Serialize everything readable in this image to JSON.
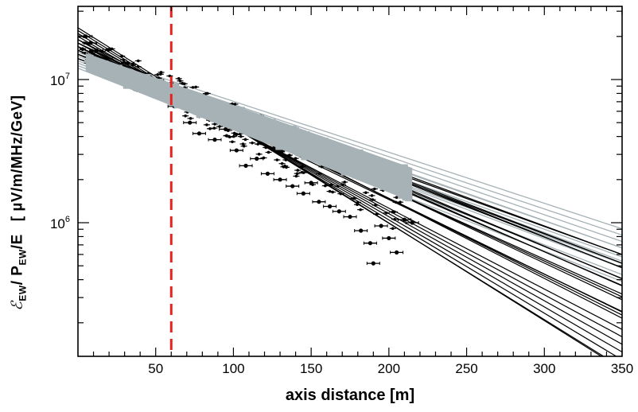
{
  "chart_data": {
    "type": "scatter",
    "x_scale": "linear",
    "y_scale": "log",
    "xlim": [
      0,
      350
    ],
    "ylim": [
      0.2,
      30
    ],
    "x_ticks": [
      50,
      100,
      150,
      200,
      250,
      300,
      350
    ],
    "x_tick_labels": [
      "50",
      "100",
      "150",
      "200",
      "250",
      "300",
      "350"
    ],
    "y_ticks": [
      1,
      10
    ],
    "y_tick_labels": [
      {
        "base": "10",
        "exp": "7",
        "value": 10
      },
      {
        "base": "10",
        "exp": "6",
        "value": 1
      }
    ],
    "xlabel": "axis  distance  [m]",
    "ylabel": {
      "symbol": "ℰ",
      "sub1": "EW",
      "middle": "/  P",
      "sub2": "EW",
      "ratio": "/E",
      "unit": "[ µV/m/MHz/GeV]"
    },
    "annotations": [
      {
        "type": "vertical-dashed-line",
        "x": 60,
        "color": "#e8201e"
      }
    ],
    "series": [
      {
        "style": "black lines with data points and horizontal error bars",
        "color": "#000000",
        "fits": [
          {
            "a": 23,
            "b": 0.0157
          },
          {
            "a": 22,
            "b": 0.0155
          },
          {
            "a": 21,
            "b": 0.015
          },
          {
            "a": 20,
            "b": 0.0145
          },
          {
            "a": 19,
            "b": 0.014
          },
          {
            "a": 18,
            "b": 0.0135
          },
          {
            "a": 17,
            "b": 0.013
          },
          {
            "a": 19,
            "b": 0.0128
          },
          {
            "a": 18,
            "b": 0.0125
          },
          {
            "a": 17,
            "b": 0.0122
          },
          {
            "a": 16,
            "b": 0.012
          },
          {
            "a": 18,
            "b": 0.0118
          },
          {
            "a": 17,
            "b": 0.0115
          },
          {
            "a": 16,
            "b": 0.0112
          },
          {
            "a": 17,
            "b": 0.011
          },
          {
            "a": 16,
            "b": 0.0108
          },
          {
            "a": 16,
            "b": 0.0105
          },
          {
            "a": 15,
            "b": 0.0103
          },
          {
            "a": 16,
            "b": 0.01
          },
          {
            "a": 15,
            "b": 0.0098
          },
          {
            "a": 15,
            "b": 0.0096
          },
          {
            "a": 14,
            "b": 0.0094
          },
          {
            "a": 15,
            "b": 0.0092
          },
          {
            "a": 14,
            "b": 0.009
          }
        ],
        "points": [
          [
            5,
            20
          ],
          [
            8,
            18
          ],
          [
            12,
            16
          ],
          [
            18,
            14
          ],
          [
            22,
            12
          ],
          [
            28,
            11
          ],
          [
            32,
            13
          ],
          [
            38,
            10.5
          ],
          [
            45,
            9.5
          ],
          [
            52,
            8.8
          ],
          [
            58,
            8.0
          ],
          [
            62,
            6.5
          ],
          [
            66,
            7.2
          ],
          [
            72,
            5.0
          ],
          [
            78,
            4.2
          ],
          [
            82,
            5.5
          ],
          [
            88,
            3.8
          ],
          [
            95,
            4.5
          ],
          [
            102,
            3.2
          ],
          [
            108,
            2.5
          ],
          [
            115,
            2.8
          ],
          [
            122,
            2.2
          ],
          [
            130,
            2.0
          ],
          [
            138,
            1.8
          ],
          [
            145,
            1.6
          ],
          [
            150,
            1.9
          ],
          [
            155,
            1.4
          ],
          [
            162,
            1.3
          ],
          [
            168,
            1.2
          ],
          [
            175,
            1.1
          ],
          [
            182,
            0.88
          ],
          [
            188,
            0.72
          ],
          [
            195,
            0.95
          ],
          [
            200,
            0.78
          ],
          [
            205,
            0.62
          ],
          [
            210,
            1.05
          ],
          [
            215,
            1.0
          ],
          [
            190,
            0.52
          ]
        ]
      },
      {
        "style": "grey lines with dense data band",
        "color": "#a6b2b6",
        "fits": [
          {
            "a": 16,
            "b": 0.0082
          },
          {
            "a": 15.5,
            "b": 0.0084
          },
          {
            "a": 15,
            "b": 0.0086
          },
          {
            "a": 14.5,
            "b": 0.0088
          },
          {
            "a": 14,
            "b": 0.009
          },
          {
            "a": 13.5,
            "b": 0.0092
          },
          {
            "a": 13,
            "b": 0.0094
          },
          {
            "a": 12.5,
            "b": 0.0096
          },
          {
            "a": 12,
            "b": 0.0098
          },
          {
            "a": 14,
            "b": 0.0087
          },
          {
            "a": 13,
            "b": 0.0089
          },
          {
            "a": 12.5,
            "b": 0.0091
          }
        ],
        "band": {
          "x_start": 5,
          "x_end": 215,
          "upper": {
            "a": 16,
            "b": 0.0088
          },
          "lower": {
            "a": 12,
            "b": 0.01
          }
        }
      }
    ]
  }
}
